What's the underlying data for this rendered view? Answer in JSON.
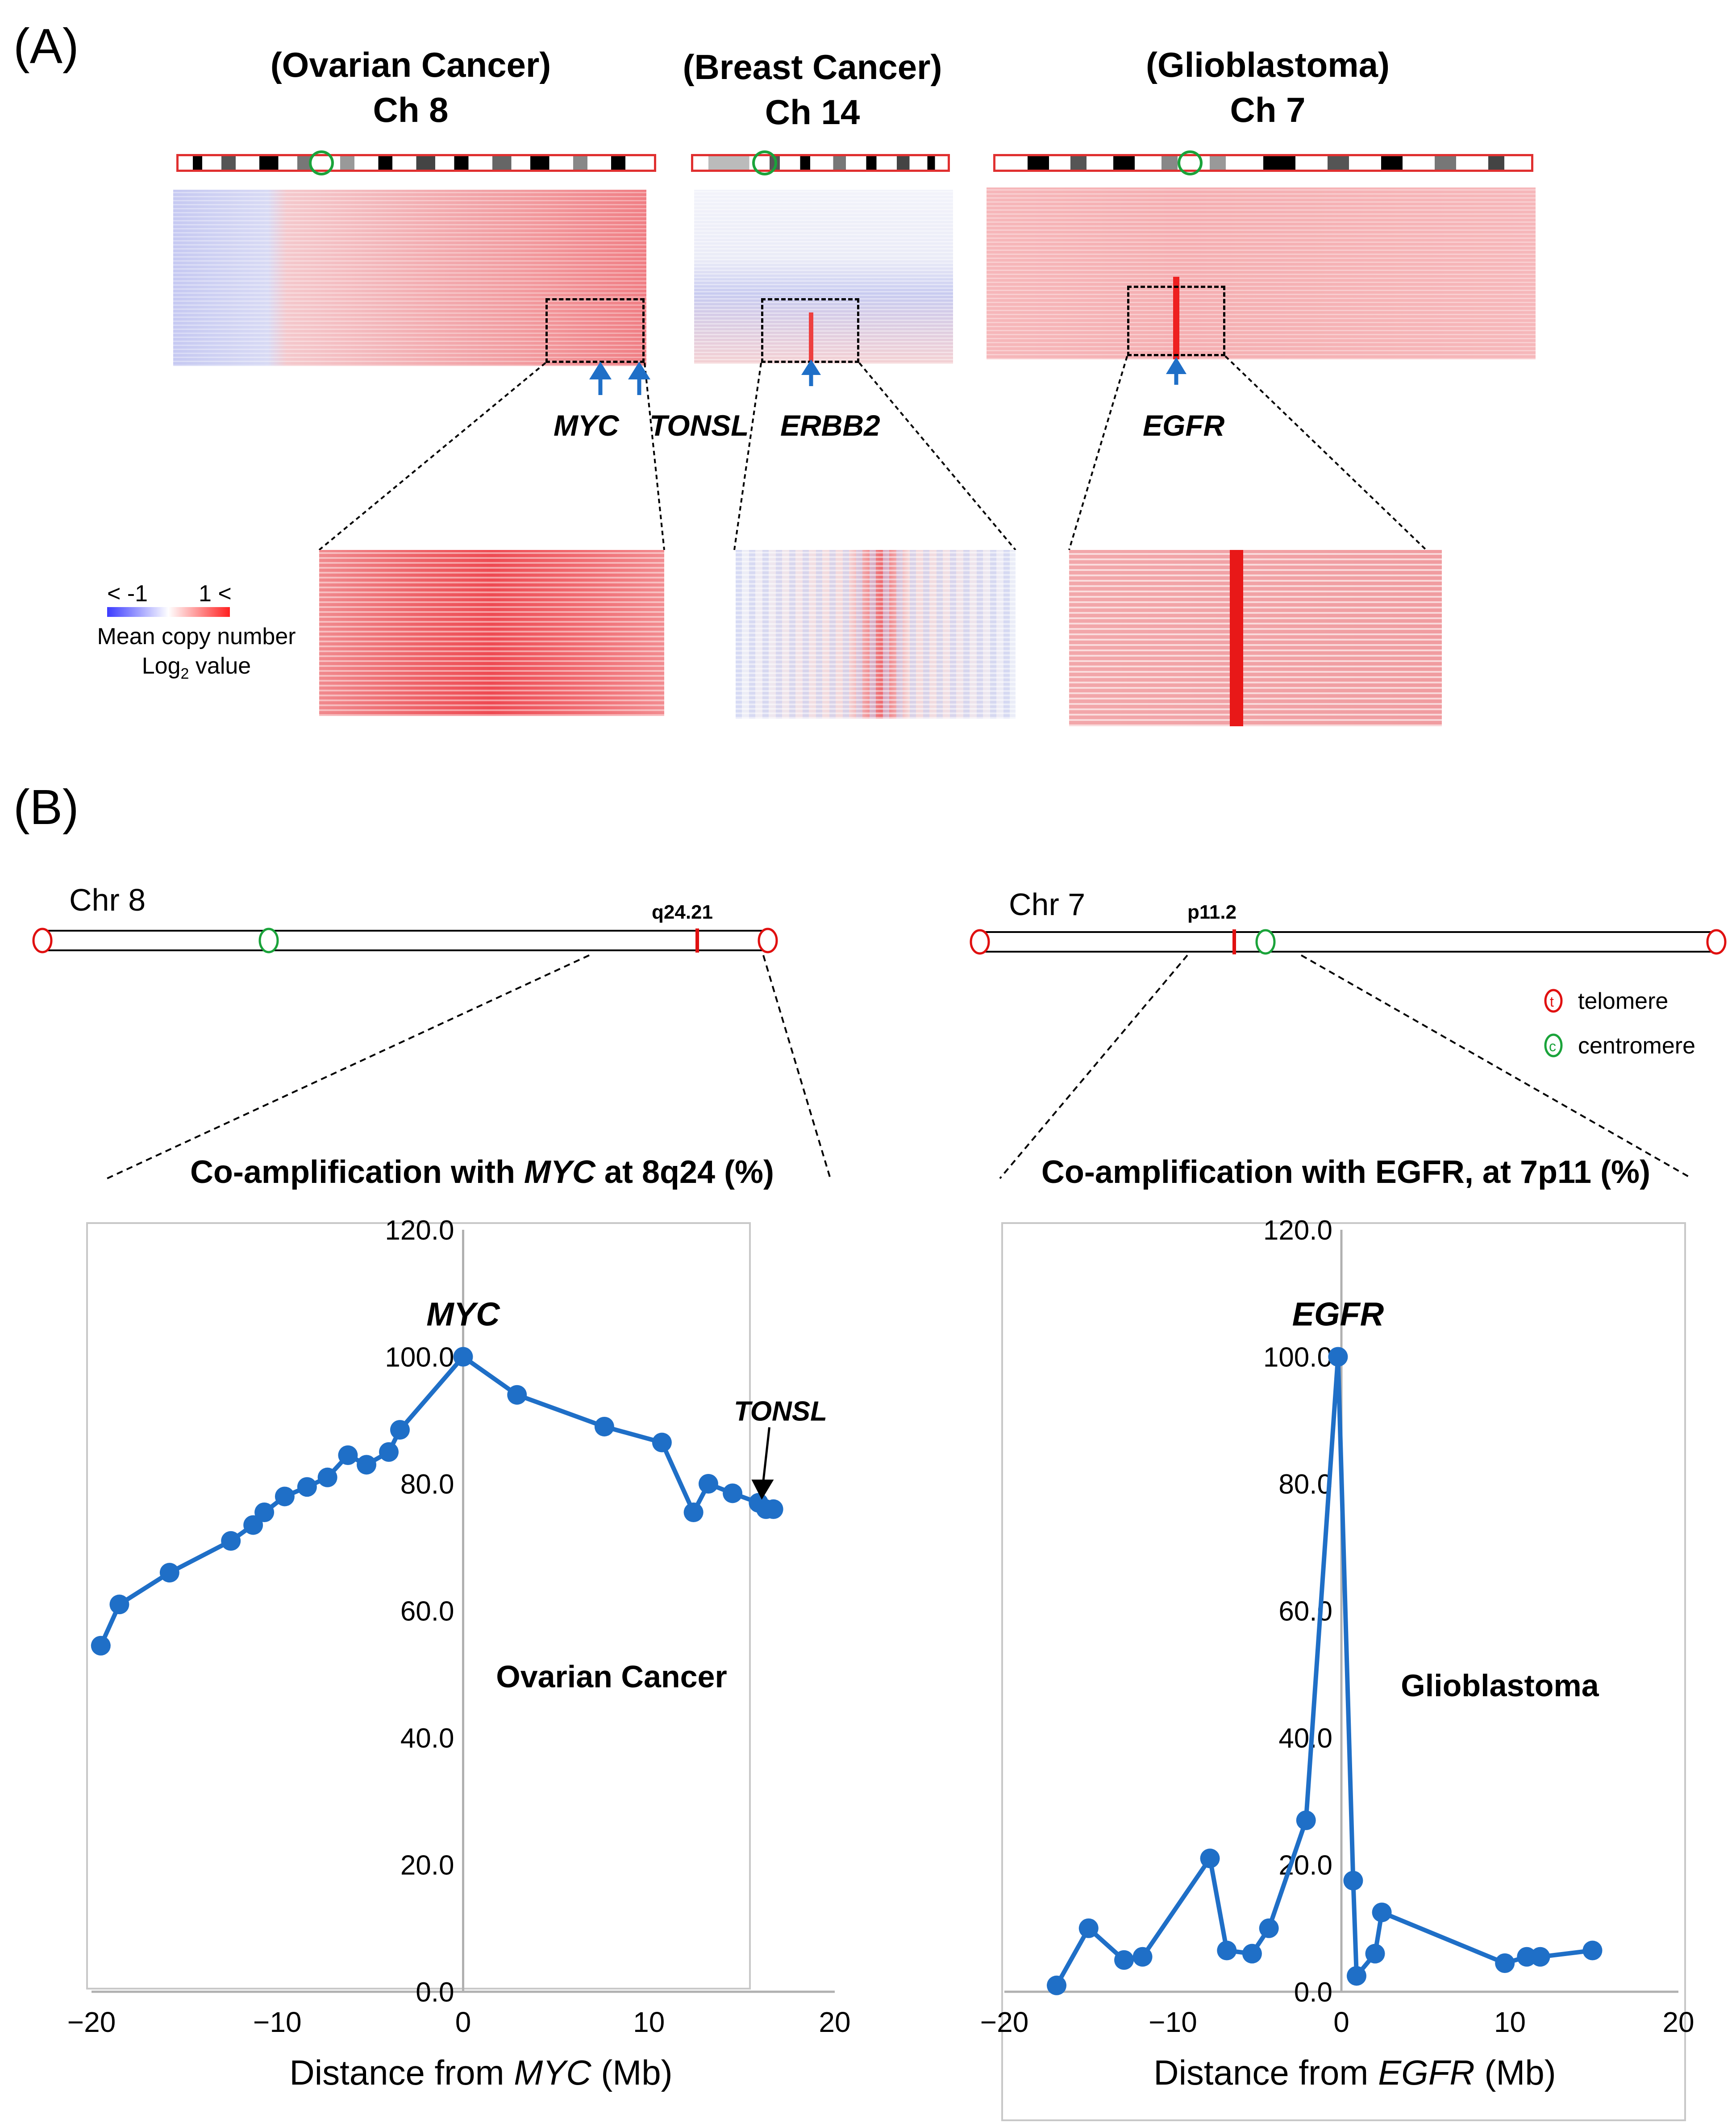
{
  "panel_a": {
    "label": "(A)",
    "titles": [
      {
        "line1": "(Ovarian Cancer)",
        "line2": "Ch 8"
      },
      {
        "line1": "(Breast Cancer)",
        "line2": "Ch 14"
      },
      {
        "line1": "(Glioblastoma)",
        "line2": "Ch 7"
      }
    ],
    "genes": [
      "MYC",
      "TONSL",
      "ERBB2",
      "EGFR"
    ],
    "legend": {
      "low": "< -1",
      "high": "1 <",
      "line1": "Mean copy number",
      "line2_prefix": "Log",
      "line2_sub": "2",
      "line2_suffix": " value"
    },
    "colors": {
      "low": "#3b3bff",
      "mid": "#ffffff",
      "high": "#ff2020"
    }
  },
  "panel_b": {
    "label": "(B)",
    "chr_left": {
      "name": "Chr 8",
      "band": "q24.21"
    },
    "chr_right": {
      "name": "Chr 7",
      "band": "p11.2"
    },
    "legend": {
      "telomere": "telomere",
      "centromere": "centromere",
      "t_glyph": "t",
      "c_glyph": "c"
    }
  },
  "chart_data": [
    {
      "type": "line",
      "title_prefix": "Co-amplification with ",
      "title_gene": "MYC",
      "title_suffix": " at 8q24 (%)",
      "annotation": "Ovarian Cancer",
      "peak_label": "MYC",
      "arrow_label": "TONSL",
      "xlabel_prefix": "Distance from ",
      "xlabel_gene": "MYC",
      "xlabel_suffix": " (Mb)",
      "xlim": [
        -20,
        20
      ],
      "ylim": [
        0,
        120
      ],
      "xticks": [
        -20,
        -10,
        0,
        10,
        20
      ],
      "xtick_labels": [
        "−20",
        "−10",
        "0",
        "10",
        "20"
      ],
      "yticks": [
        0,
        20,
        40,
        60,
        80,
        100,
        120
      ],
      "ytick_labels": [
        "0.0",
        "20.0",
        "40.0",
        "60.0",
        "80.0",
        "100.0",
        "120.0"
      ],
      "color": "#1f6fc7",
      "x": [
        -19.5,
        -18.5,
        -15.8,
        -12.5,
        -11.3,
        -10.7,
        -9.6,
        -8.4,
        -7.3,
        -6.2,
        -5.2,
        -4.0,
        -3.4,
        0,
        2.9,
        7.6,
        10.7,
        12.4,
        13.2,
        14.5,
        15.9,
        16.3,
        16.7
      ],
      "y": [
        54.5,
        61,
        66,
        71,
        73.5,
        75.5,
        78,
        79.5,
        81,
        84.5,
        83,
        85,
        88.5,
        100,
        94,
        89,
        86.5,
        75.5,
        80,
        78.5,
        77,
        76,
        76
      ]
    },
    {
      "type": "line",
      "title_prefix": "Co-amplification with EGFR, at 7p11 (%)",
      "title_gene": "",
      "title_suffix": "",
      "annotation": "Glioblastoma",
      "peak_label": "EGFR",
      "xlabel_prefix": "Distance from ",
      "xlabel_gene": "EGFR",
      "xlabel_suffix": " (Mb)",
      "xlim": [
        -20,
        20
      ],
      "ylim": [
        0,
        120
      ],
      "xticks": [
        -20,
        -10,
        0,
        10,
        20
      ],
      "xtick_labels": [
        "−20",
        "−10",
        "0",
        "10",
        "20"
      ],
      "yticks": [
        0,
        20,
        40,
        60,
        80,
        100,
        120
      ],
      "ytick_labels": [
        "0.0",
        "20.0",
        "40.0",
        "60.0",
        "80.0",
        "100.0",
        "120.0"
      ],
      "color": "#1f6fc7",
      "x": [
        -16.9,
        -15.0,
        -12.9,
        -11.8,
        -7.8,
        -6.8,
        -5.3,
        -4.3,
        -2.1,
        -0.2,
        0.7,
        0.9,
        2.0,
        2.4,
        9.7,
        11.0,
        11.8,
        14.9
      ],
      "y": [
        1,
        10,
        5,
        5.5,
        21,
        6.5,
        6,
        10,
        27,
        100,
        17.5,
        2.5,
        6,
        12.5,
        4.5,
        5.5,
        5.5,
        6.5
      ]
    }
  ]
}
